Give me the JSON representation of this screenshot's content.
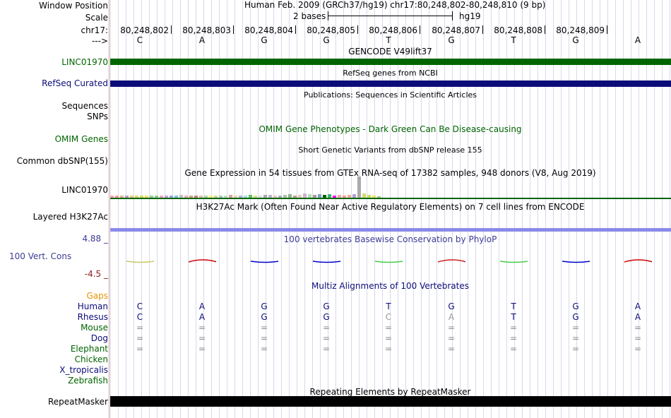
{
  "header": {
    "window_position_label": "Window Position",
    "window_position_value": "Human Feb. 2009 (GRCh37/hg19)   chr17:80,248,802-80,248,810 (9 bp)",
    "scale_label": "Scale",
    "scale_value": "2 bases",
    "scale_assembly": "hg19",
    "chrom_label": "chr17:",
    "strand_label": "--->",
    "coordinates": [
      "80,248,802",
      "80,248,803",
      "80,248,804",
      "80,248,805",
      "80,248,806",
      "80,248,807",
      "80,248,808",
      "80,248,809"
    ],
    "bases": [
      "C",
      "A",
      "G",
      "G",
      "T",
      "G",
      "T",
      "G",
      "A"
    ]
  },
  "tracks": {
    "gencode": {
      "title": "GENCODE V49lift37",
      "label": "LINC01970",
      "color": "#006400"
    },
    "refseq": {
      "title": "RefSeq genes from NCBI",
      "label": "RefSeq Curated",
      "color": "#0c0c78"
    },
    "publications": {
      "title": "Publications: Sequences in Scientific Articles",
      "label1": "Sequences",
      "label2": "SNPs"
    },
    "omim": {
      "title": "OMIM Gene Phenotypes - Dark Green Can Be Disease-causing",
      "label": "OMIM Genes",
      "color": "#006400"
    },
    "dbsnp": {
      "title": "Short Genetic Variants from dbSNP release 155",
      "label": "Common dbSNP(155)"
    },
    "gtex": {
      "title": "Gene Expression in 54 tissues from GTEx RNA-seq of 17382 samples, 948 donors (V8, Aug 2019)",
      "label": "LINC01970"
    },
    "h3k27ac": {
      "title": "H3K27Ac Mark (Often Found Near Active Regulatory Elements) on 7 cell lines from ENCODE",
      "label": "Layered H3K27Ac",
      "color": "#8a8ae8"
    },
    "phylop": {
      "title": "100 vertebrates Basewise Conservation by PhyloP",
      "label": "100 Vert. Cons",
      "max": "4.88 _",
      "min": "-4.5 _",
      "color": "#3c3c96"
    },
    "multiz": {
      "title": "Multiz Alignments of 100 Vertebrates",
      "gaps_label": "Gaps",
      "species": [
        {
          "name": "Human",
          "color": "#0c0c78",
          "seq": [
            "C",
            "A",
            "G",
            "G",
            "T",
            "G",
            "T",
            "G",
            "A"
          ]
        },
        {
          "name": "Rhesus",
          "color": "#0c0c78",
          "seq": [
            "C",
            "A",
            "G",
            "G",
            "C",
            "A",
            "T",
            "G",
            "A"
          ]
        },
        {
          "name": "Mouse",
          "color": "#006400",
          "seq": [
            "=",
            "=",
            "=",
            "=",
            "=",
            "=",
            "=",
            "=",
            "="
          ]
        },
        {
          "name": "Dog",
          "color": "#0c0c78",
          "seq": [
            "=",
            "=",
            "=",
            "=",
            "=",
            "=",
            "=",
            "=",
            "="
          ]
        },
        {
          "name": "Elephant",
          "color": "#006400",
          "seq": [
            "=",
            "=",
            "=",
            "=",
            "=",
            "=",
            "=",
            "=",
            "="
          ]
        },
        {
          "name": "Chicken",
          "color": "#006400",
          "seq": []
        },
        {
          "name": "X_tropicalis",
          "color": "#0c0c78",
          "seq": []
        },
        {
          "name": "Zebrafish",
          "color": "#006400",
          "seq": []
        }
      ]
    },
    "repeatmasker": {
      "title": "Repeating Elements by RepeatMasker",
      "label": "RepeatMasker"
    }
  }
}
